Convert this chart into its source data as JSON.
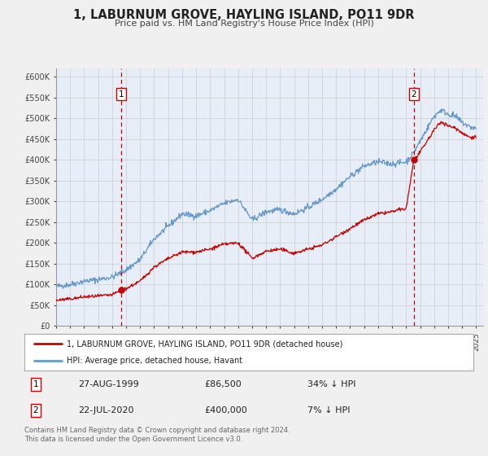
{
  "title": "1, LABURNUM GROVE, HAYLING ISLAND, PO11 9DR",
  "subtitle": "Price paid vs. HM Land Registry's House Price Index (HPI)",
  "background_color": "#f0f0f0",
  "plot_background": "#e8eef8",
  "hpi_color": "#6699cc",
  "price_color": "#cc0000",
  "ylim": [
    0,
    620000
  ],
  "xlim_start": 1995.0,
  "xlim_end": 2025.5,
  "transaction1": {
    "date_num": 1999.65,
    "price": 86500,
    "label": "1",
    "date_str": "27-AUG-1999",
    "pct": "34% ↓ HPI"
  },
  "transaction2": {
    "date_num": 2020.55,
    "price": 400000,
    "label": "2",
    "date_str": "22-JUL-2020",
    "pct": "7% ↓ HPI"
  },
  "legend_label1": "1, LABURNUM GROVE, HAYLING ISLAND, PO11 9DR (detached house)",
  "legend_label2": "HPI: Average price, detached house, Havant",
  "footnote": "Contains HM Land Registry data © Crown copyright and database right 2024.\nThis data is licensed under the Open Government Licence v3.0.",
  "yticks": [
    0,
    50000,
    100000,
    150000,
    200000,
    250000,
    300000,
    350000,
    400000,
    450000,
    500000,
    550000,
    600000
  ],
  "ytick_labels": [
    "£0",
    "£50K",
    "£100K",
    "£150K",
    "£200K",
    "£250K",
    "£300K",
    "£350K",
    "£400K",
    "£450K",
    "£500K",
    "£550K",
    "£600K"
  ],
  "xticks": [
    1995,
    1996,
    1997,
    1998,
    1999,
    2000,
    2001,
    2002,
    2003,
    2004,
    2005,
    2006,
    2007,
    2008,
    2009,
    2010,
    2011,
    2012,
    2013,
    2014,
    2015,
    2016,
    2017,
    2018,
    2019,
    2020,
    2021,
    2022,
    2023,
    2024,
    2025
  ]
}
